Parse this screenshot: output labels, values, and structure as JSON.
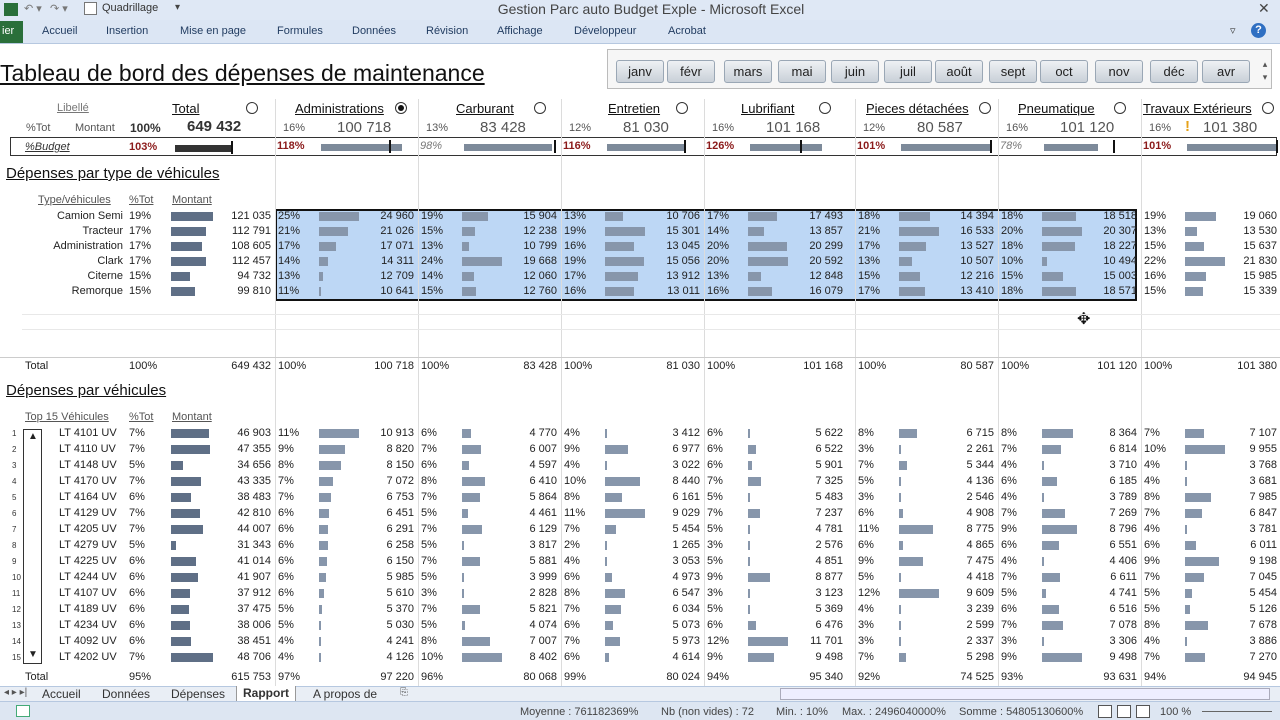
{
  "window": {
    "title": "Gestion Parc auto Budget Exple - Microsoft Excel"
  },
  "qat": {
    "label": "Quadrillage"
  },
  "ribbon": {
    "file": "ier",
    "tabs": [
      "Accueil",
      "Insertion",
      "Mise en page",
      "Formules",
      "Données",
      "Révision",
      "Affichage",
      "Développeur",
      "Acrobat"
    ]
  },
  "dashboard": {
    "title": "Tableau de bord des dépenses de maintenance"
  },
  "slicer": {
    "months": [
      "janv",
      "févr",
      "mars",
      "mai",
      "juin",
      "juil",
      "août",
      "sept",
      "oct",
      "nov",
      "déc",
      "avr"
    ]
  },
  "kpi": {
    "libelle": "Libellé",
    "tot_label": "%Tot",
    "montant_label": "Montant",
    "budget_label": "%Budget",
    "total": {
      "name": "Total",
      "pct": "100%",
      "value": "649 432",
      "budget": "103%"
    },
    "cats": [
      {
        "name": "Administrations",
        "pct": "16%",
        "value": "100 718",
        "budget": "118%",
        "over": true,
        "fill": 0.9,
        "mark": 0.76,
        "selected": true
      },
      {
        "name": "Carburant",
        "pct": "13%",
        "value": "83 428",
        "budget": "98%",
        "over": false,
        "fill": 0.98,
        "mark": 1.0,
        "selected": false
      },
      {
        "name": "Entretien",
        "pct": "12%",
        "value": "81 030",
        "budget": "116%",
        "over": true,
        "fill": 0.86,
        "mark": 0.86,
        "selected": false
      },
      {
        "name": "Lubrifiant",
        "pct": "16%",
        "value": "101 168",
        "budget": "126%",
        "over": true,
        "fill": 0.8,
        "mark": 0.55,
        "selected": false
      },
      {
        "name": "Pieces détachées",
        "pct": "12%",
        "value": "80 587",
        "budget": "101%",
        "over": true,
        "fill": 0.99,
        "mark": 0.99,
        "selected": false
      },
      {
        "name": "Pneumatique",
        "pct": "16%",
        "value": "101 120",
        "budget": "78%",
        "over": false,
        "fill": 0.6,
        "mark": 0.77,
        "selected": false
      },
      {
        "name": "Travaux Extérieurs",
        "pct": "16%",
        "value": "101 380",
        "budget": "101%",
        "over": true,
        "fill": 0.99,
        "mark": 0.99,
        "selected": false,
        "warn": "!"
      }
    ]
  },
  "type_section": {
    "title": "Dépenses par type de véhicules",
    "headers": {
      "type": "Type/véhicules",
      "tot": "%Tot",
      "montant": "Montant"
    },
    "rows": [
      {
        "name": "Camion Semi",
        "pct": "19%",
        "value": "121 035",
        "cells": [
          [
            "25%",
            "24 960"
          ],
          [
            "19%",
            "15 904"
          ],
          [
            "13%",
            "10 706"
          ],
          [
            "17%",
            "17 493"
          ],
          [
            "18%",
            "14 394"
          ],
          [
            "18%",
            "18 518"
          ],
          [
            "19%",
            "19 060"
          ]
        ]
      },
      {
        "name": "Tracteur",
        "pct": "17%",
        "value": "112 791",
        "cells": [
          [
            "21%",
            "21 026"
          ],
          [
            "15%",
            "12 238"
          ],
          [
            "19%",
            "15 301"
          ],
          [
            "14%",
            "13 857"
          ],
          [
            "21%",
            "16 533"
          ],
          [
            "20%",
            "20 307"
          ],
          [
            "13%",
            "13 530"
          ]
        ]
      },
      {
        "name": "Administration",
        "pct": "17%",
        "value": "108 605",
        "cells": [
          [
            "17%",
            "17 071"
          ],
          [
            "13%",
            "10 799"
          ],
          [
            "16%",
            "13 045"
          ],
          [
            "20%",
            "20 299"
          ],
          [
            "17%",
            "13 527"
          ],
          [
            "18%",
            "18 227"
          ],
          [
            "15%",
            "15 637"
          ]
        ]
      },
      {
        "name": "Clark",
        "pct": "17%",
        "value": "112 457",
        "cells": [
          [
            "14%",
            "14 311"
          ],
          [
            "24%",
            "19 668"
          ],
          [
            "19%",
            "15 056"
          ],
          [
            "20%",
            "20 592"
          ],
          [
            "13%",
            "10 507"
          ],
          [
            "10%",
            "10 494"
          ],
          [
            "22%",
            "21 830"
          ]
        ]
      },
      {
        "name": "Citerne",
        "pct": "15%",
        "value": "94 732",
        "cells": [
          [
            "13%",
            "12 709"
          ],
          [
            "14%",
            "12 060"
          ],
          [
            "17%",
            "13 912"
          ],
          [
            "13%",
            "12 848"
          ],
          [
            "15%",
            "12 216"
          ],
          [
            "15%",
            "15 003"
          ],
          [
            "16%",
            "15 985"
          ]
        ]
      },
      {
        "name": "Remorque",
        "pct": "15%",
        "value": "99 810",
        "cells": [
          [
            "11%",
            "10 641"
          ],
          [
            "15%",
            "12 760"
          ],
          [
            "16%",
            "13 011"
          ],
          [
            "16%",
            "16 079"
          ],
          [
            "17%",
            "13 410"
          ],
          [
            "18%",
            "18 571"
          ],
          [
            "15%",
            "15 339"
          ]
        ]
      }
    ],
    "total": {
      "label": "Total",
      "pct": "100%",
      "value": "649 432",
      "cells": [
        [
          "100%",
          "100 718"
        ],
        [
          "100%",
          "83 428"
        ],
        [
          "100%",
          "81 030"
        ],
        [
          "100%",
          "101 168"
        ],
        [
          "100%",
          "80 587"
        ],
        [
          "100%",
          "101 120"
        ],
        [
          "100%",
          "101 380"
        ]
      ]
    }
  },
  "veh_section": {
    "title": "Dépenses par véhicules",
    "headers": {
      "top": "Top 15 Véhicules",
      "tot": "%Tot",
      "montant": "Montant"
    },
    "rows": [
      {
        "n": "1",
        "name": "LT 4101 UV",
        "pct": "7%",
        "value": "46 903",
        "cells": [
          [
            "11%",
            "10 913"
          ],
          [
            "6%",
            "4 770"
          ],
          [
            "4%",
            "3 412"
          ],
          [
            "6%",
            "5 622"
          ],
          [
            "8%",
            "6 715"
          ],
          [
            "8%",
            "8 364"
          ],
          [
            "7%",
            "7 107"
          ]
        ]
      },
      {
        "n": "2",
        "name": "LT 4110 UV",
        "pct": "7%",
        "value": "47 355",
        "cells": [
          [
            "9%",
            "8 820"
          ],
          [
            "7%",
            "6 007"
          ],
          [
            "9%",
            "6 977"
          ],
          [
            "6%",
            "6 522"
          ],
          [
            "3%",
            "2 261"
          ],
          [
            "7%",
            "6 814"
          ],
          [
            "10%",
            "9 955"
          ]
        ]
      },
      {
        "n": "3",
        "name": "LT 4148 UV",
        "pct": "5%",
        "value": "34 656",
        "cells": [
          [
            "8%",
            "8 150"
          ],
          [
            "6%",
            "4 597"
          ],
          [
            "4%",
            "3 022"
          ],
          [
            "6%",
            "5 901"
          ],
          [
            "7%",
            "5 344"
          ],
          [
            "4%",
            "3 710"
          ],
          [
            "4%",
            "3 768"
          ]
        ]
      },
      {
        "n": "4",
        "name": "LT 4170 UV",
        "pct": "7%",
        "value": "43 335",
        "cells": [
          [
            "7%",
            "7 072"
          ],
          [
            "8%",
            "6 410"
          ],
          [
            "10%",
            "8 440"
          ],
          [
            "7%",
            "7 325"
          ],
          [
            "5%",
            "4 136"
          ],
          [
            "6%",
            "6 185"
          ],
          [
            "4%",
            "3 681"
          ]
        ]
      },
      {
        "n": "5",
        "name": "LT 4164 UV",
        "pct": "6%",
        "value": "38 483",
        "cells": [
          [
            "7%",
            "6 753"
          ],
          [
            "7%",
            "5 864"
          ],
          [
            "8%",
            "6 161"
          ],
          [
            "5%",
            "5 483"
          ],
          [
            "3%",
            "2 546"
          ],
          [
            "4%",
            "3 789"
          ],
          [
            "8%",
            "7 985"
          ]
        ]
      },
      {
        "n": "6",
        "name": "LT 4129 UV",
        "pct": "7%",
        "value": "42 810",
        "cells": [
          [
            "6%",
            "6 451"
          ],
          [
            "5%",
            "4 461"
          ],
          [
            "11%",
            "9 029"
          ],
          [
            "7%",
            "7 237"
          ],
          [
            "6%",
            "4 908"
          ],
          [
            "7%",
            "7 269"
          ],
          [
            "7%",
            "6 847"
          ]
        ]
      },
      {
        "n": "7",
        "name": "LT 4205 UV",
        "pct": "7%",
        "value": "44 007",
        "cells": [
          [
            "6%",
            "6 291"
          ],
          [
            "7%",
            "6 129"
          ],
          [
            "7%",
            "5 454"
          ],
          [
            "5%",
            "4 781"
          ],
          [
            "11%",
            "8 775"
          ],
          [
            "9%",
            "8 796"
          ],
          [
            "4%",
            "3 781"
          ]
        ]
      },
      {
        "n": "8",
        "name": "LT 4279 UV",
        "pct": "5%",
        "value": "31 343",
        "cells": [
          [
            "6%",
            "6 258"
          ],
          [
            "5%",
            "3 817"
          ],
          [
            "2%",
            "1 265"
          ],
          [
            "3%",
            "2 576"
          ],
          [
            "6%",
            "4 865"
          ],
          [
            "6%",
            "6 551"
          ],
          [
            "6%",
            "6 011"
          ]
        ]
      },
      {
        "n": "9",
        "name": "LT 4225 UV",
        "pct": "6%",
        "value": "41 014",
        "cells": [
          [
            "6%",
            "6 150"
          ],
          [
            "7%",
            "5 881"
          ],
          [
            "4%",
            "3 053"
          ],
          [
            "5%",
            "4 851"
          ],
          [
            "9%",
            "7 475"
          ],
          [
            "4%",
            "4 406"
          ],
          [
            "9%",
            "9 198"
          ]
        ]
      },
      {
        "n": "10",
        "name": "LT 4244 UV",
        "pct": "6%",
        "value": "41 907",
        "cells": [
          [
            "6%",
            "5 985"
          ],
          [
            "5%",
            "3 999"
          ],
          [
            "6%",
            "4 973"
          ],
          [
            "9%",
            "8 877"
          ],
          [
            "5%",
            "4 418"
          ],
          [
            "7%",
            "6 611"
          ],
          [
            "7%",
            "7 045"
          ]
        ]
      },
      {
        "n": "11",
        "name": "LT 4107 UV",
        "pct": "6%",
        "value": "37 912",
        "cells": [
          [
            "6%",
            "5 610"
          ],
          [
            "3%",
            "2 828"
          ],
          [
            "8%",
            "6 547"
          ],
          [
            "3%",
            "3 123"
          ],
          [
            "12%",
            "9 609"
          ],
          [
            "5%",
            "4 741"
          ],
          [
            "5%",
            "5 454"
          ]
        ]
      },
      {
        "n": "12",
        "name": "LT 4189 UV",
        "pct": "6%",
        "value": "37 475",
        "cells": [
          [
            "5%",
            "5 370"
          ],
          [
            "7%",
            "5 821"
          ],
          [
            "7%",
            "6 034"
          ],
          [
            "5%",
            "5 369"
          ],
          [
            "4%",
            "3 239"
          ],
          [
            "6%",
            "6 516"
          ],
          [
            "5%",
            "5 126"
          ]
        ]
      },
      {
        "n": "13",
        "name": "LT 4234 UV",
        "pct": "6%",
        "value": "38 006",
        "cells": [
          [
            "5%",
            "5 030"
          ],
          [
            "5%",
            "4 074"
          ],
          [
            "6%",
            "5 073"
          ],
          [
            "6%",
            "6 476"
          ],
          [
            "3%",
            "2 599"
          ],
          [
            "7%",
            "7 078"
          ],
          [
            "8%",
            "7 678"
          ]
        ]
      },
      {
        "n": "14",
        "name": "LT 4092 UV",
        "pct": "6%",
        "value": "38 451",
        "cells": [
          [
            "4%",
            "4 241"
          ],
          [
            "8%",
            "7 007"
          ],
          [
            "7%",
            "5 973"
          ],
          [
            "12%",
            "11 701"
          ],
          [
            "3%",
            "2 337"
          ],
          [
            "3%",
            "3 306"
          ],
          [
            "4%",
            "3 886"
          ]
        ]
      },
      {
        "n": "15",
        "name": "LT 4202 UV",
        "pct": "7%",
        "value": "48 706",
        "cells": [
          [
            "4%",
            "4 126"
          ],
          [
            "10%",
            "8 402"
          ],
          [
            "6%",
            "4 614"
          ],
          [
            "9%",
            "9 498"
          ],
          [
            "7%",
            "5 298"
          ],
          [
            "9%",
            "9 498"
          ],
          [
            "7%",
            "7 270"
          ]
        ]
      }
    ],
    "total": {
      "label": "Total",
      "pct": "95%",
      "value": "615 753",
      "cells": [
        [
          "97%",
          "97 220"
        ],
        [
          "96%",
          "80 068"
        ],
        [
          "99%",
          "80 024"
        ],
        [
          "94%",
          "95 340"
        ],
        [
          "92%",
          "74 525"
        ],
        [
          "93%",
          "93 631"
        ],
        [
          "94%",
          "94 945"
        ]
      ]
    }
  },
  "sheet_tabs": [
    "Accueil",
    "Données",
    "Dépenses",
    "Rapport",
    "A propos de"
  ],
  "active_tab": "Rapport",
  "status": {
    "moyenne": "Moyenne : 761182369%",
    "nb": "Nb (non vides) : 72",
    "min": "Min. : 10%",
    "max": "Max. : 2496040000%",
    "somme": "Somme : 54805130600%",
    "zoom": "100 %"
  }
}
